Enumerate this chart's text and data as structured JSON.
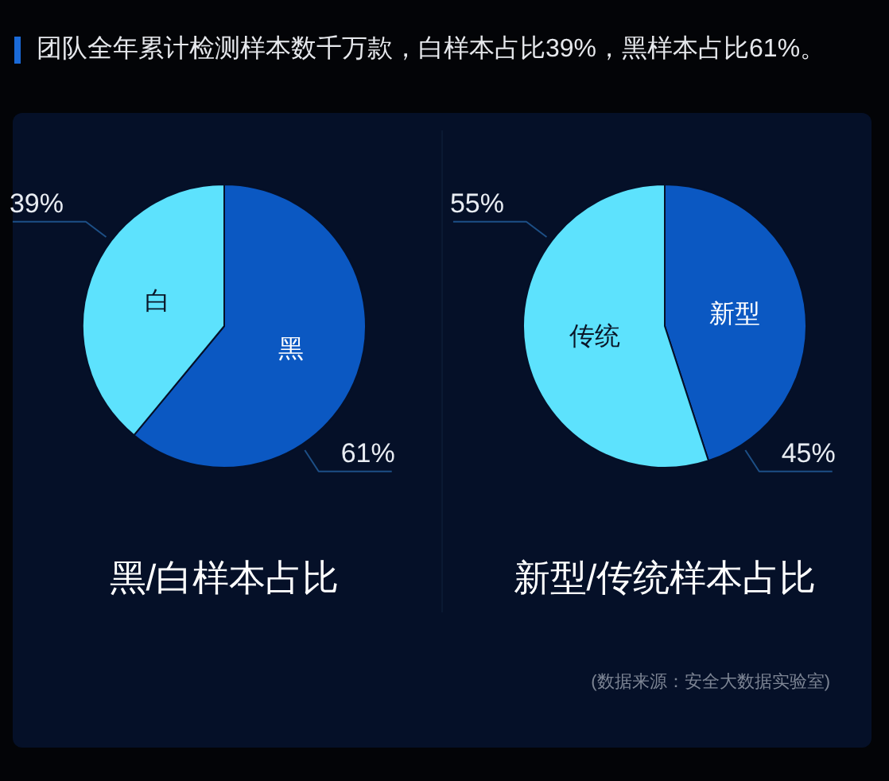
{
  "chart_data": [
    {
      "type": "pie",
      "title": "黑/白样本占比",
      "categories": [
        "黑",
        "白"
      ],
      "values": [
        61,
        39
      ],
      "colors": [
        "#0b58c2",
        "#5de2fd"
      ],
      "value_labels": [
        "61%",
        "39%"
      ],
      "annotations": [
        "团队全年累计检测样本数千万款，白样本占比39%，黑样本占比61%。"
      ]
    },
    {
      "type": "pie",
      "title": "新型/传统样本占比",
      "categories": [
        "新型",
        "传统"
      ],
      "values": [
        45,
        55
      ],
      "colors": [
        "#0b58c2",
        "#5de2fd"
      ],
      "value_labels": [
        "45%",
        "55%"
      ],
      "annotations": [
        "(数据来源：安全大数据实验室)"
      ]
    }
  ]
}
